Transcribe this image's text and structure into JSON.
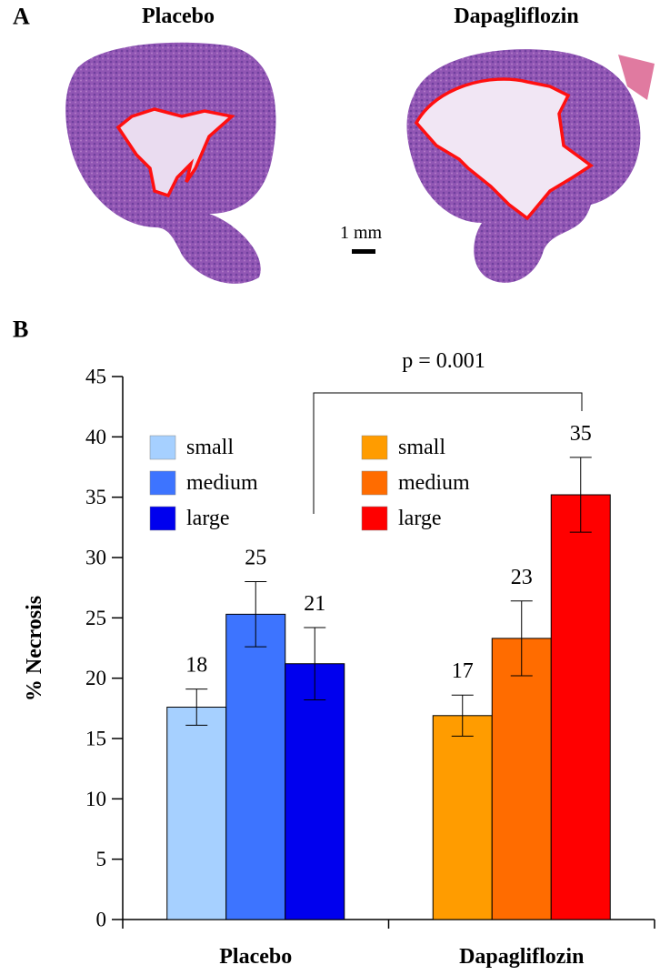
{
  "panel_a": {
    "label": "A",
    "images": [
      {
        "title": "Placebo"
      },
      {
        "title": "Dapagliflozin"
      }
    ],
    "scale_bar": "1 mm"
  },
  "chart_data": {
    "type": "bar",
    "label": "B",
    "y_label": "% Necrosis",
    "annotation": "p = 0.001",
    "categories": [
      "Placebo",
      "Dapagliflozin"
    ],
    "series": [
      {
        "name": "small",
        "color": "#a6d0ff",
        "values": [
          17.6,
          null
        ],
        "errors": [
          1.5,
          null
        ],
        "value_labels": [
          "18",
          null
        ]
      },
      {
        "name": "medium",
        "color": "#3d74ff",
        "values": [
          25.3,
          null
        ],
        "errors": [
          2.7,
          null
        ],
        "value_labels": [
          "25",
          null
        ]
      },
      {
        "name": "large",
        "color": "#0000ee",
        "values": [
          21.2,
          null
        ],
        "errors": [
          3.0,
          null
        ],
        "value_labels": [
          "21",
          null
        ]
      },
      {
        "name": "small",
        "color": "#ff9c00",
        "values": [
          null,
          16.9
        ],
        "errors": [
          null,
          1.7
        ],
        "value_labels": [
          null,
          "17"
        ]
      },
      {
        "name": "medium",
        "color": "#ff6c00",
        "values": [
          null,
          23.3
        ],
        "errors": [
          null,
          3.1
        ],
        "value_labels": [
          null,
          "23"
        ]
      },
      {
        "name": "large",
        "color": "#ff0000",
        "values": [
          null,
          35.2
        ],
        "errors": [
          null,
          3.1
        ],
        "value_labels": [
          null,
          "35"
        ]
      }
    ],
    "ylim": [
      0,
      45
    ],
    "yticks": [
      0,
      5,
      10,
      15,
      20,
      25,
      30,
      35,
      40,
      45
    ],
    "grid": false
  }
}
